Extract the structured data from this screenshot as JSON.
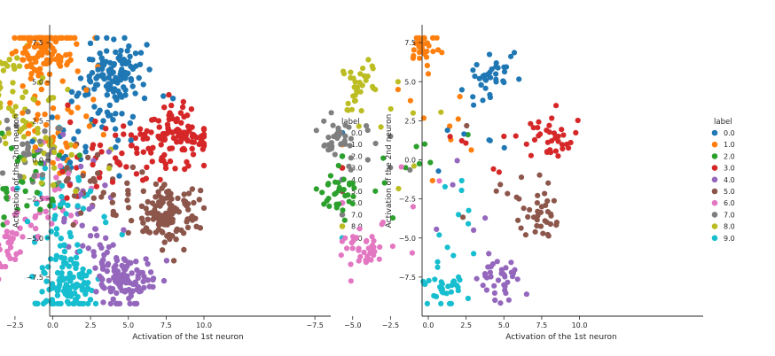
{
  "legend_title": "label",
  "label_names": [
    "0.0",
    "1.0",
    "2.0",
    "3.0",
    "4.0",
    "5.0",
    "6.0",
    "7.0",
    "8.0",
    "9.0"
  ],
  "label_colors": [
    "#1f77b4",
    "#ff7f0e",
    "#2ca02c",
    "#d62728",
    "#9467bd",
    "#8c564b",
    "#e377c2",
    "#7f7f7f",
    "#bcbd22",
    "#17becf"
  ],
  "cluster_centers": [
    [
      4.2,
      5.6
    ],
    [
      -0.5,
      7.3
    ],
    [
      -6.0,
      -2.0
    ],
    [
      8.4,
      1.6
    ],
    [
      4.8,
      -7.8
    ],
    [
      7.6,
      -3.6
    ],
    [
      -4.4,
      -5.8
    ],
    [
      -6.4,
      1.7
    ],
    [
      -4.3,
      4.7
    ],
    [
      1.0,
      -8.2
    ]
  ],
  "chart_data": [
    {
      "type": "scatter",
      "xlabel": "Activation of the 1st neuron",
      "ylabel": "Activation of the 2nd neuron",
      "xlim": [
        -8.0,
        10.4
      ],
      "ylim": [
        -9.6,
        8.3
      ],
      "xticks": [
        "−7.5",
        "−5.0",
        "−2.5",
        "0.0",
        "2.5",
        "5.0",
        "7.5",
        "10.0"
      ],
      "yticks": [
        "7.5",
        "5.0",
        "2.5",
        "0.0",
        "−2.5",
        "−5.0",
        "−7.5"
      ],
      "grid": false,
      "legend_position": "right",
      "series": [
        {
          "name": "0.0",
          "values": [
            [
              4.0,
              5.6
            ],
            [
              2.5,
              5.0
            ],
            [
              5.5,
              6.0
            ],
            [
              3.0,
              3.0
            ],
            [
              0.5,
              1.5
            ]
          ]
        },
        {
          "name": "1.0",
          "values": [
            [
              -0.5,
              7.3
            ],
            [
              -1.5,
              6.5
            ],
            [
              0.5,
              6.0
            ],
            [
              -2.0,
              3.0
            ],
            [
              1.0,
              0.0
            ]
          ]
        },
        {
          "name": "2.0",
          "values": [
            [
              -6.0,
              -2.0
            ],
            [
              -4.5,
              -1.0
            ],
            [
              -3.0,
              -2.5
            ],
            [
              -1.0,
              0.5
            ],
            [
              0.5,
              -3.0
            ]
          ]
        },
        {
          "name": "3.0",
          "values": [
            [
              8.4,
              1.6
            ],
            [
              7.0,
              2.5
            ],
            [
              6.0,
              0.5
            ],
            [
              3.5,
              2.0
            ],
            [
              1.0,
              3.5
            ]
          ]
        },
        {
          "name": "4.0",
          "values": [
            [
              4.8,
              -7.8
            ],
            [
              5.5,
              -6.5
            ],
            [
              3.5,
              -5.0
            ],
            [
              2.0,
              -2.0
            ],
            [
              0.0,
              0.5
            ]
          ]
        },
        {
          "name": "5.0",
          "values": [
            [
              7.6,
              -3.6
            ],
            [
              8.5,
              -4.5
            ],
            [
              6.0,
              -2.0
            ],
            [
              4.0,
              -3.5
            ],
            [
              2.0,
              -1.0
            ]
          ]
        },
        {
          "name": "6.0",
          "values": [
            [
              -4.4,
              -5.8
            ],
            [
              -5.5,
              -4.0
            ],
            [
              -2.5,
              -3.5
            ],
            [
              -1.0,
              -1.0
            ],
            [
              1.5,
              -4.0
            ]
          ]
        },
        {
          "name": "7.0",
          "values": [
            [
              -6.4,
              1.7
            ],
            [
              -5.5,
              0.0
            ],
            [
              -4.0,
              2.5
            ],
            [
              -2.0,
              1.0
            ],
            [
              0.5,
              2.0
            ]
          ]
        },
        {
          "name": "8.0",
          "values": [
            [
              -4.3,
              4.7
            ],
            [
              -3.0,
              6.0
            ],
            [
              -2.0,
              4.0
            ],
            [
              -1.0,
              2.0
            ],
            [
              1.0,
              4.5
            ]
          ]
        },
        {
          "name": "9.0",
          "values": [
            [
              1.0,
              -8.2
            ],
            [
              2.0,
              -7.0
            ],
            [
              3.5,
              -4.0
            ],
            [
              0.5,
              -5.5
            ],
            [
              2.5,
              -2.0
            ]
          ]
        }
      ]
    },
    {
      "type": "scatter",
      "xlabel": "Activation of the 1st neuron",
      "ylabel": "Activation of the 2nd neuron",
      "xlim": [
        -8.0,
        10.4
      ],
      "ylim": [
        -9.6,
        8.3
      ],
      "xticks": [
        "−7.5",
        "−5.0",
        "−2.5",
        "0.0",
        "2.5",
        "5.0",
        "7.5",
        "10.0"
      ],
      "yticks": [
        "7.5",
        "5.0",
        "2.5",
        "0.0",
        "−2.5",
        "−5.0",
        "−7.5"
      ],
      "grid": false,
      "legend_position": "right",
      "series": [
        {
          "name": "0.0",
          "values": [
            [
              4.2,
              5.8
            ],
            [
              4.5,
              6.2
            ],
            [
              3.5,
              4.8
            ],
            [
              3.0,
              3.5
            ]
          ]
        },
        {
          "name": "1.0",
          "values": [
            [
              -0.5,
              7.6
            ],
            [
              -1.0,
              6.5
            ],
            [
              0.0,
              5.5
            ],
            [
              -2.0,
              4.5
            ]
          ]
        },
        {
          "name": "2.0",
          "values": [
            [
              -6.2,
              -2.2
            ],
            [
              -5.0,
              -1.5
            ],
            [
              -3.5,
              -2.0
            ],
            [
              -1.5,
              -0.5
            ]
          ]
        },
        {
          "name": "3.0",
          "values": [
            [
              8.6,
              1.5
            ],
            [
              8.0,
              2.2
            ],
            [
              6.5,
              1.0
            ],
            [
              5.0,
              1.5
            ]
          ]
        },
        {
          "name": "4.0",
          "values": [
            [
              5.0,
              -8.0
            ],
            [
              5.5,
              -7.2
            ],
            [
              4.0,
              -6.0
            ],
            [
              3.0,
              -4.5
            ]
          ]
        },
        {
          "name": "5.0",
          "values": [
            [
              8.5,
              -4.0
            ],
            [
              7.5,
              -3.0
            ],
            [
              6.0,
              -2.5
            ],
            [
              4.5,
              -2.0
            ]
          ]
        },
        {
          "name": "6.0",
          "values": [
            [
              -4.5,
              -6.2
            ],
            [
              -5.5,
              -5.0
            ],
            [
              -3.0,
              -4.0
            ],
            [
              -1.0,
              -3.0
            ]
          ]
        },
        {
          "name": "7.0",
          "values": [
            [
              -6.3,
              2.2
            ],
            [
              -5.5,
              1.0
            ],
            [
              -4.0,
              0.0
            ],
            [
              -2.5,
              1.5
            ]
          ]
        },
        {
          "name": "8.0",
          "values": [
            [
              -4.5,
              5.5
            ],
            [
              -3.5,
              4.5
            ],
            [
              -2.0,
              5.0
            ],
            [
              -1.0,
              3.0
            ]
          ]
        },
        {
          "name": "9.0",
          "values": [
            [
              1.0,
              -8.5
            ],
            [
              2.0,
              -7.5
            ],
            [
              3.0,
              -6.0
            ],
            [
              2.0,
              -3.5
            ]
          ]
        }
      ]
    }
  ]
}
